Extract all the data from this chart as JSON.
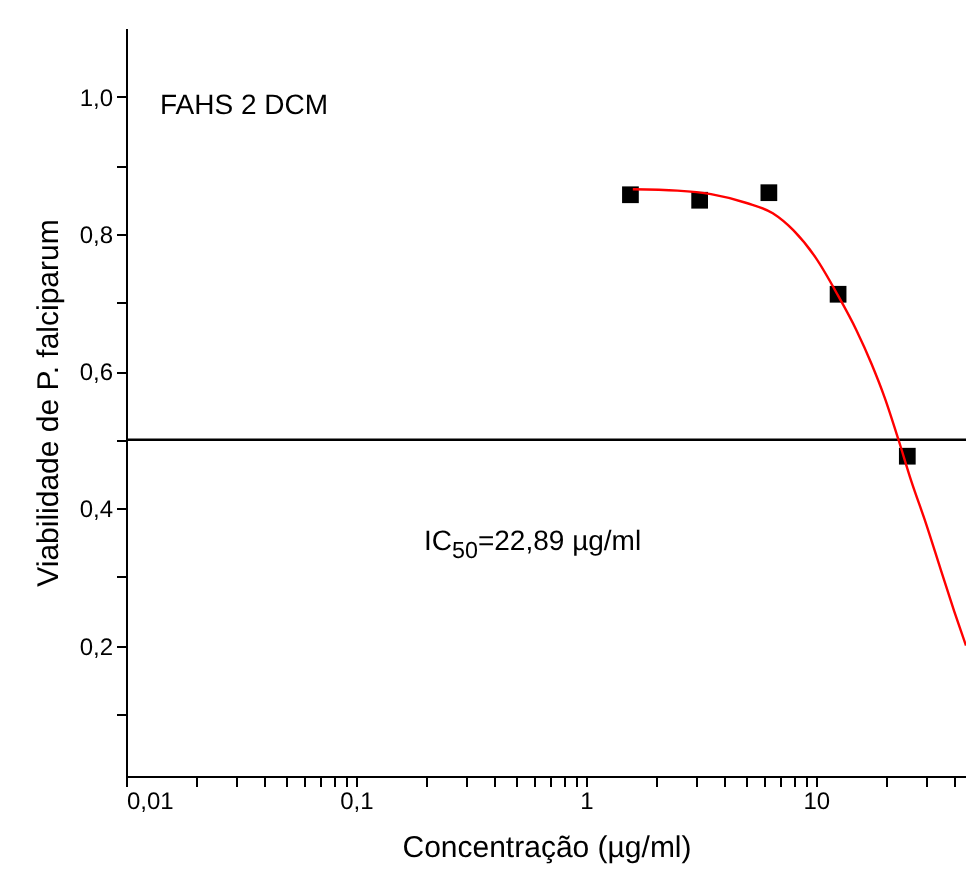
{
  "chart_data": {
    "type": "scatter",
    "xlabel": "Concentração (µg/ml)",
    "ylabel": "Viabilidade de P. falciparum",
    "annotations": [
      "FAHS 2 DCM",
      "IC$_{50}$=22,89 µg/ml"
    ],
    "log": "x",
    "xlim": [
      0.01,
      45
    ],
    "ylim": [
      0.01,
      1.1
    ],
    "xticks": [
      {
        "value": 0.01,
        "label": "0,01"
      },
      {
        "value": 0.02,
        "label": null
      },
      {
        "value": 0.03,
        "label": null
      },
      {
        "value": 0.04,
        "label": null
      },
      {
        "value": 0.05,
        "label": null
      },
      {
        "value": 0.06,
        "label": null
      },
      {
        "value": 0.07,
        "label": null
      },
      {
        "value": 0.08,
        "label": null
      },
      {
        "value": 0.09,
        "label": null
      },
      {
        "value": 0.1,
        "label": "0,1"
      },
      {
        "value": 0.2,
        "label": null
      },
      {
        "value": 0.3,
        "label": null
      },
      {
        "value": 0.4,
        "label": null
      },
      {
        "value": 0.5,
        "label": null
      },
      {
        "value": 0.6,
        "label": null
      },
      {
        "value": 0.7,
        "label": null
      },
      {
        "value": 0.8,
        "label": null
      },
      {
        "value": 0.9,
        "label": null
      },
      1,
      {
        "value": 2,
        "label": null
      },
      {
        "value": 3,
        "label": null
      },
      {
        "value": 4,
        "label": null
      },
      {
        "value": 5,
        "label": null
      },
      {
        "value": 6,
        "label": null
      },
      {
        "value": 7,
        "label": null
      },
      {
        "value": 8,
        "label": null
      },
      {
        "value": 9,
        "label": null
      },
      10,
      {
        "value": 20,
        "label": null
      },
      {
        "value": 30,
        "label": null
      },
      {
        "value": 40,
        "label": null
      }
    ],
    "yticks": [
      {
        "value": 0.1,
        "label": null
      },
      {
        "value": 0.2,
        "label": "0,2"
      },
      {
        "value": 0.3,
        "label": null
      },
      {
        "value": 0.4,
        "label": "0,4"
      },
      {
        "value": 0.5,
        "label": null
      },
      {
        "value": 0.6,
        "label": "0,6"
      },
      {
        "value": 0.7,
        "label": null
      },
      {
        "value": 0.8,
        "label": "0,8"
      },
      {
        "value": 0.9,
        "label": null
      },
      {
        "value": 1.0,
        "label": "1,0"
      }
    ],
    "grid": false,
    "ref_lines": [
      {
        "axis": "y",
        "value": 0.5,
        "color": "#000000"
      }
    ],
    "series": [
      {
        "marker": "square",
        "color": "#000000",
        "x": [
          1.5625,
          3.125,
          6.25,
          12.5,
          25
        ],
        "values": [
          0.857,
          0.849,
          0.86,
          0.712,
          0.476
        ]
      },
      {
        "type": "line",
        "marker": "none",
        "color": "#ff0000",
        "x": [
          1.6,
          2.5,
          3.5,
          5,
          6.5,
          8,
          10,
          12.5,
          15,
          17.5,
          20,
          22.89,
          26,
          30,
          35,
          40,
          45
        ],
        "values": [
          0.865,
          0.863,
          0.858,
          0.845,
          0.83,
          0.805,
          0.765,
          0.71,
          0.66,
          0.61,
          0.56,
          0.5,
          0.44,
          0.38,
          0.31,
          0.25,
          0.2
        ]
      }
    ]
  }
}
